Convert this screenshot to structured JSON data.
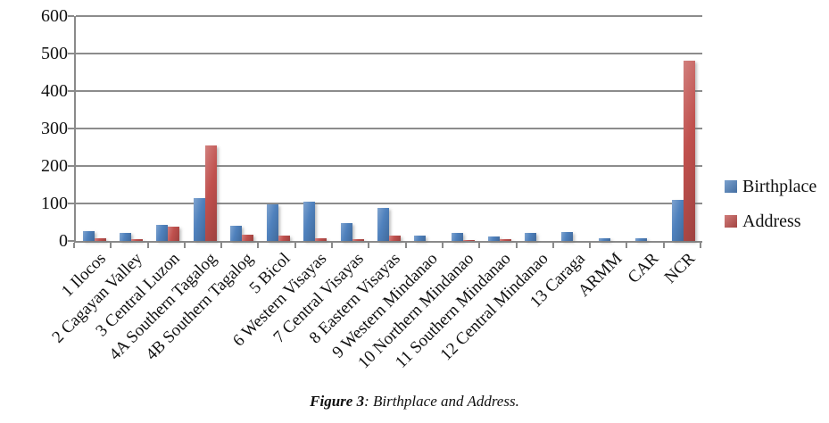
{
  "chart_data": {
    "type": "bar",
    "title": "",
    "xlabel": "",
    "ylabel": "",
    "categories": [
      "1 Ilocos",
      "2 Cagayan Valley",
      "3 Central Luzon",
      "4A Southern Tagalog",
      "4B Southern Tagalog",
      "5 Bicol",
      "6 Western Visayas",
      "7 Central Visayas",
      "8 Eastern Visayas",
      "9 Western Mindanao",
      "10 Northern Mindanao",
      "11 Southern Mindanao",
      "12 Central Mindanao",
      "13 Caraga",
      "ARMM",
      "CAR",
      "NCR"
    ],
    "series": [
      {
        "name": "Birthplace",
        "color": "#4F81BD",
        "values": [
          27,
          22,
          44,
          115,
          41,
          97,
          105,
          48,
          88,
          15,
          21,
          13,
          21,
          24,
          7,
          7,
          110
        ]
      },
      {
        "name": "Address",
        "color": "#C0504D",
        "values": [
          8,
          5,
          38,
          255,
          16,
          14,
          6,
          4,
          15,
          0,
          3,
          5,
          0,
          0,
          0,
          0,
          480
        ]
      }
    ],
    "ylim": [
      0,
      600
    ],
    "yticks": [
      0,
      100,
      200,
      300,
      400,
      500,
      600
    ],
    "grid": "horizontal",
    "legend_position": "right"
  },
  "caption": {
    "fig_label": "Figure 3",
    "text": ": Birthplace and Address."
  }
}
